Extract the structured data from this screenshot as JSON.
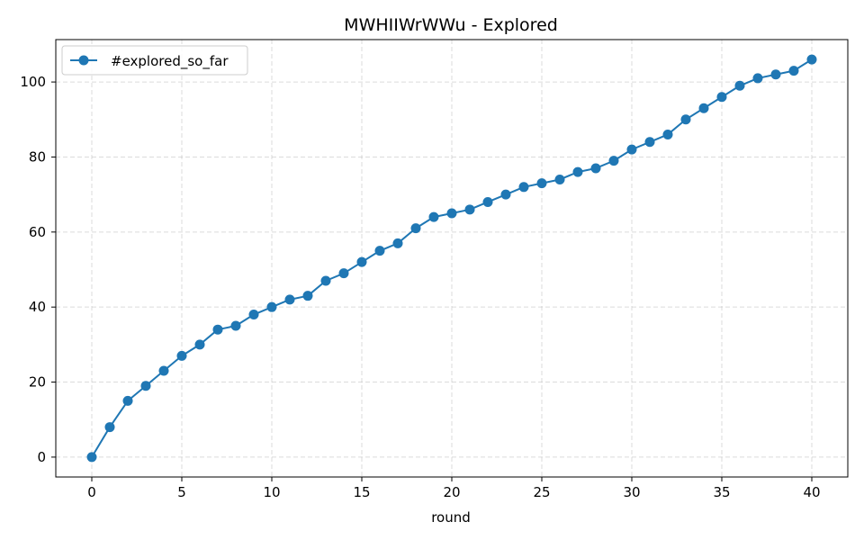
{
  "chart_data": {
    "type": "line",
    "title": "MWHIIWrWWu - Explored",
    "xlabel": "round",
    "ylabel": "",
    "xlim": [
      -2,
      42
    ],
    "ylim": [
      -5.3,
      111.3
    ],
    "xticks": [
      0,
      5,
      10,
      15,
      20,
      25,
      30,
      35,
      40
    ],
    "yticks": [
      0,
      20,
      40,
      60,
      80,
      100
    ],
    "grid": true,
    "legend_position": "top-left",
    "series": [
      {
        "name": "#explored_so_far",
        "color": "#1f77b4",
        "marker": "circle",
        "x": [
          0,
          1,
          2,
          3,
          4,
          5,
          6,
          7,
          8,
          9,
          10,
          11,
          12,
          13,
          14,
          15,
          16,
          17,
          18,
          19,
          20,
          21,
          22,
          23,
          24,
          25,
          26,
          27,
          28,
          29,
          30,
          31,
          32,
          33,
          34,
          35,
          36,
          37,
          38,
          39,
          40
        ],
        "values": [
          0,
          8,
          15,
          19,
          23,
          27,
          30,
          34,
          35,
          38,
          40,
          42,
          43,
          47,
          49,
          52,
          55,
          57,
          61,
          64,
          65,
          66,
          68,
          70,
          72,
          73,
          74,
          76,
          77,
          79,
          82,
          84,
          86,
          90,
          93,
          96,
          99,
          101,
          102,
          103,
          106
        ]
      }
    ]
  }
}
